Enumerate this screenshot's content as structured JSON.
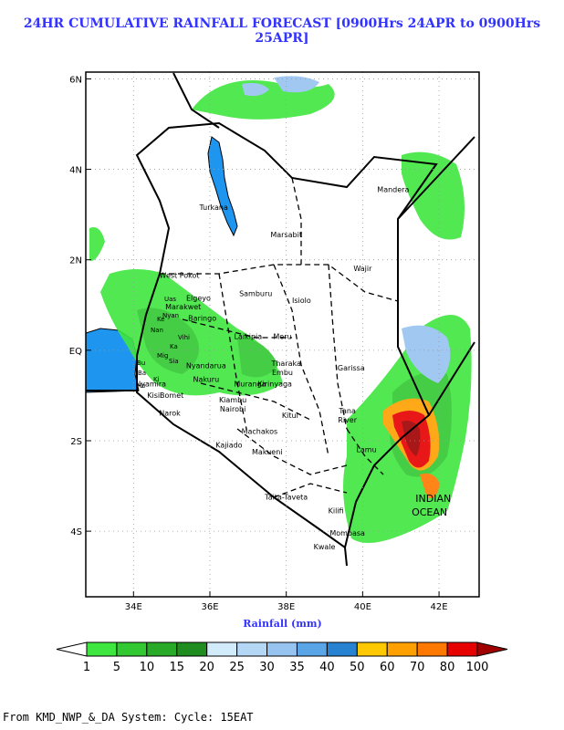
{
  "title": "24HR CUMULATIVE RAINFALL FORECAST [0900Hrs 24APR to 0900Hrs 25APR]",
  "map": {
    "lat_ticks": [
      {
        "value": 6,
        "label": "6N"
      },
      {
        "value": 4,
        "label": "4N"
      },
      {
        "value": 2,
        "label": "2N"
      },
      {
        "value": 0,
        "label": "EQ"
      },
      {
        "value": -2,
        "label": "2S"
      },
      {
        "value": -4,
        "label": "4S"
      }
    ],
    "lon_ticks": [
      {
        "value": 34,
        "label": "34E"
      },
      {
        "value": 36,
        "label": "36E"
      },
      {
        "value": 38,
        "label": "38E"
      },
      {
        "value": 40,
        "label": "40E"
      },
      {
        "value": 42,
        "label": "42E"
      }
    ],
    "lon_range": [
      32.75,
      43.05
    ],
    "lat_range": [
      -5.45,
      6.15
    ],
    "place_labels": [
      {
        "name": "Turkana",
        "lon": 36.1,
        "lat": 3.1
      },
      {
        "name": "Marsabit",
        "lon": 38.0,
        "lat": 2.5
      },
      {
        "name": "Mandera",
        "lon": 40.8,
        "lat": 3.5
      },
      {
        "name": "Wajir",
        "lon": 40.0,
        "lat": 1.75
      },
      {
        "name": "West Pokot",
        "lon": 35.2,
        "lat": 1.6
      },
      {
        "name": "Samburu",
        "lon": 37.2,
        "lat": 1.2
      },
      {
        "name": "Isiolo",
        "lon": 38.4,
        "lat": 1.05
      },
      {
        "name": "Elgeyo",
        "lon": 35.7,
        "lat": 1.1
      },
      {
        "name": "Marakwet",
        "lon": 35.3,
        "lat": 0.9
      },
      {
        "name": "Baringo",
        "lon": 35.8,
        "lat": 0.65
      },
      {
        "name": "Laikipia",
        "lon": 37.0,
        "lat": 0.25
      },
      {
        "name": "Meru",
        "lon": 37.9,
        "lat": 0.25
      },
      {
        "name": "Tharaka",
        "lon": 38.0,
        "lat": -0.35
      },
      {
        "name": "Embu",
        "lon": 37.9,
        "lat": -0.55
      },
      {
        "name": "Kirinyaga",
        "lon": 37.7,
        "lat": -0.8
      },
      {
        "name": "Nyandarua",
        "lon": 35.9,
        "lat": -0.4
      },
      {
        "name": "Nakuru",
        "lon": 35.9,
        "lat": -0.7
      },
      {
        "name": "Muranga",
        "lon": 37.05,
        "lat": -0.8
      },
      {
        "name": "Kiambu",
        "lon": 36.6,
        "lat": -1.15
      },
      {
        "name": "Nairobi",
        "lon": 36.6,
        "lat": -1.35
      },
      {
        "name": "Nyamira",
        "lon": 34.45,
        "lat": -0.8
      },
      {
        "name": "Kisii",
        "lon": 34.55,
        "lat": -1.05
      },
      {
        "name": "Bomet",
        "lon": 35.0,
        "lat": -1.05
      },
      {
        "name": "Narok",
        "lon": 34.95,
        "lat": -1.45
      },
      {
        "name": "Garissa",
        "lon": 39.7,
        "lat": -0.45
      },
      {
        "name": "Kitui",
        "lon": 38.1,
        "lat": -1.5
      },
      {
        "name": "Machakos",
        "lon": 37.3,
        "lat": -1.85
      },
      {
        "name": "Tana",
        "lon": 39.6,
        "lat": -1.4
      },
      {
        "name": "River",
        "lon": 39.6,
        "lat": -1.6
      },
      {
        "name": "Kajiado",
        "lon": 36.5,
        "lat": -2.15
      },
      {
        "name": "Makueni",
        "lon": 37.5,
        "lat": -2.3
      },
      {
        "name": "Lamu",
        "lon": 40.1,
        "lat": -2.25
      },
      {
        "name": "Taita-Taveta",
        "lon": 38.0,
        "lat": -3.3
      },
      {
        "name": "Kilifi",
        "lon": 39.3,
        "lat": -3.6
      },
      {
        "name": "Mombasa",
        "lon": 39.6,
        "lat": -4.1
      },
      {
        "name": "Kwale",
        "lon": 39.0,
        "lat": -4.4
      },
      {
        "name": "INDIAN",
        "lon": 41.85,
        "lat": -3.35
      },
      {
        "name": "OCEAN",
        "lon": 41.75,
        "lat": -3.65
      }
    ],
    "lake_label_fragments": [
      "Bu",
      "Ba",
      "Ho",
      "Ke",
      "Uas",
      "Nan",
      "Ka",
      "Vihi",
      "Sia",
      "Ki",
      "Nyan",
      "Mig"
    ]
  },
  "xlabel": "Rainfall (mm)",
  "colorbar": {
    "levels": [
      "1",
      "5",
      "10",
      "15",
      "20",
      "25",
      "30",
      "35",
      "40",
      "50",
      "60",
      "70",
      "80",
      "100"
    ],
    "colors": [
      "#ffffff",
      "#3fe63f",
      "#32c832",
      "#28aa28",
      "#1e8c1e",
      "#d2ebfa",
      "#b4d7f5",
      "#96c3f0",
      "#5aa5e6",
      "#2882d2",
      "#ffc800",
      "#ffa000",
      "#ff7800",
      "#e60000",
      "#a00000"
    ]
  },
  "footer": "From KMD_NWP_&_DA System: Cycle: 15EAT"
}
